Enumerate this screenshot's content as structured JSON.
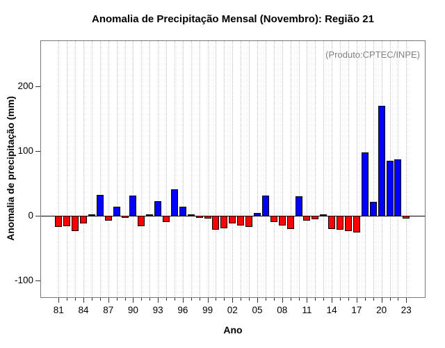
{
  "chart": {
    "title": "Anomalia de Precipitação Mensal (Novembro): Região 21",
    "annotation": "(Produto:CPTEC/INPE)",
    "xlabel": "Ano",
    "ylabel": "Anomalia de precipitação (mm)"
  },
  "chart_data": {
    "type": "bar",
    "title": "Anomalia de Precipitação Mensal (Novembro): Região 21",
    "subtitle_annotation": "(Produto:CPTEC/INPE)",
    "xlabel": "Ano",
    "ylabel": "Anomalia de precipitação (mm)",
    "x": [
      1981,
      1982,
      1983,
      1984,
      1985,
      1986,
      1987,
      1988,
      1989,
      1990,
      1991,
      1992,
      1993,
      1994,
      1995,
      1996,
      1997,
      1998,
      1999,
      2000,
      2001,
      2002,
      2003,
      2004,
      2005,
      2006,
      2007,
      2008,
      2009,
      2010,
      2011,
      2012,
      2013,
      2014,
      2015,
      2016,
      2017,
      2018,
      2019,
      2020,
      2021,
      2022,
      2023
    ],
    "values": [
      -17,
      -16,
      -23,
      -11,
      3,
      33,
      -7,
      14,
      -3,
      32,
      -16,
      2,
      23,
      -9,
      41,
      14,
      2,
      -3,
      -4,
      -21,
      -19,
      -12,
      -15,
      -17,
      5,
      31,
      -9,
      -15,
      -20,
      30,
      -7,
      -5,
      2,
      -20,
      -21,
      -23,
      -26,
      98,
      22,
      170,
      85,
      87,
      -4
    ],
    "x_tick_labels": [
      "81",
      "84",
      "87",
      "90",
      "93",
      "96",
      "99",
      "02",
      "05",
      "08",
      "11",
      "14",
      "17",
      "20",
      "23"
    ],
    "x_tick_label_step": 3,
    "y_ticks": [
      -100,
      0,
      100,
      200
    ],
    "ylim": [
      -130,
      265
    ],
    "grid": "vertical dotted line at every year",
    "legend": "none",
    "colors": {
      "positive_bar": "#0000ff",
      "negative_bar": "#ff0000",
      "bar_border": "#000000",
      "grid_line": "#c4c4c4",
      "zero_line": "#000000",
      "axis_box": "#777777",
      "tick": "#333333",
      "annotation_text": "#7f7f7f",
      "text": "#000000",
      "background": "#ffffff"
    }
  }
}
